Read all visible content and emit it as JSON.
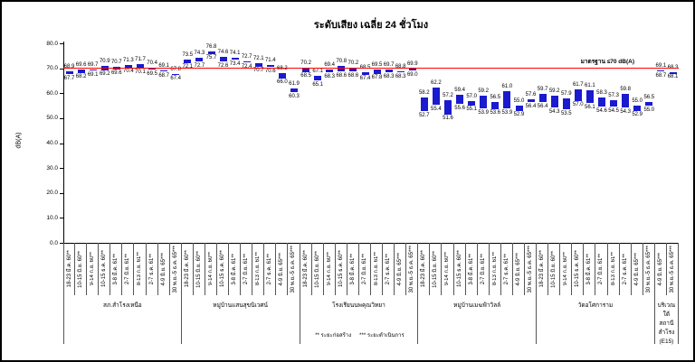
{
  "chart_data": {
    "type": "bar",
    "subtype": "floating-range (min-max) bars",
    "title": "ระดับเสียง เฉลี่ย 24 ชั่วโมง",
    "ylabel": "dB(A)",
    "ylim": [
      0,
      80
    ],
    "ytick_step": 10,
    "grid": false,
    "bar_color": "#1A1ACF",
    "standard_line": {
      "value": 70,
      "label": "มาตรฐาน ≤70 dB(A)",
      "color": "#FF0000"
    },
    "periods": [
      "18-23 มี.ค. 60**",
      "10-15 มิ.ย. 60**",
      "9-14 ก.ย. 60**",
      "10-15 ธ.ค. 60**",
      "3-8 มี.ค. 61**",
      "2-7 มิ.ย. 61**",
      "8-13 ก.ย. 61**",
      "2-7 ธ.ค. 61**",
      "4-9 มิ.ย. 65***",
      "30 พ.ย.-5 ธ.ค. 65***"
    ],
    "groups": [
      {
        "name": "สภ.สำโรงเหนือ",
        "period_indices": [
          0,
          1,
          2,
          3,
          4,
          5,
          6,
          7,
          8,
          9
        ],
        "max": [
          68.9,
          69.6,
          69.7,
          70.9,
          70.7,
          71.3,
          71.7,
          70.4,
          69.1,
          67.8
        ],
        "min": [
          67.7,
          68.2,
          69.1,
          69.2,
          69.6,
          70.4,
          70.1,
          69.5,
          68.7,
          67.4
        ]
      },
      {
        "name": "หมู่บ้านแสนสุขนิเวศน์",
        "period_indices": [
          0,
          1,
          2,
          3,
          4,
          5,
          6,
          7,
          8,
          9
        ],
        "max": [
          73.5,
          74.3,
          76.8,
          74.6,
          74.1,
          72.7,
          72.1,
          71.4,
          68.2,
          61.9
        ],
        "min": [
          72.1,
          72.7,
          75.7,
          72.6,
          73.4,
          72.4,
          70.7,
          70.6,
          66.0,
          60.3
        ]
      },
      {
        "name": "โรงเรียนนพคุณวิทยา",
        "period_indices": [
          0,
          1,
          2,
          3,
          4,
          5,
          6,
          7,
          8,
          9
        ],
        "max": [
          70.2,
          67.1,
          69.4,
          70.8,
          70.2,
          68.5,
          69.5,
          69.7,
          68.8,
          69.9
        ],
        "min": [
          68.5,
          65.1,
          68.3,
          68.6,
          68.6,
          67.4,
          67.8,
          68.3,
          68.3,
          69.0
        ]
      },
      {
        "name": "หมู่บ้านเมฆฟ้าวิลล์",
        "period_indices": [
          0,
          1,
          2,
          3,
          4,
          5,
          6,
          7,
          8,
          9
        ],
        "max": [
          58.2,
          62.2,
          57.2,
          59.4,
          57.0,
          59.2,
          56.5,
          61.0,
          55.0,
          57.6
        ],
        "min": [
          52.7,
          55.4,
          51.6,
          55.6,
          55.1,
          53.9,
          53.6,
          53.9,
          52.9,
          56.4
        ]
      },
      {
        "name": "วัดอโศการาม",
        "period_indices": [
          0,
          1,
          2,
          3,
          4,
          5,
          6,
          7,
          8,
          9
        ],
        "max": [
          59.7,
          59.2,
          57.9,
          61.7,
          61.1,
          58.3,
          57.3,
          59.8,
          55.0,
          56.5
        ],
        "min": [
          56.4,
          54.3,
          53.5,
          57.0,
          56.1,
          54.6,
          54.5,
          54.3,
          52.9,
          55.0
        ]
      },
      {
        "name": "บริเวณใต้สถานีสำโรง (E15)",
        "name_lines": [
          "บริเวณใต้",
          "สถานี",
          "สำโรง",
          "(E15)"
        ],
        "period_indices": [
          8,
          9
        ],
        "max": [
          69.1,
          68.3
        ],
        "min": [
          68.7,
          68.1
        ]
      }
    ],
    "footnote": {
      "construction": "** ระยะก่อสร้าง",
      "operation": "*** ระยะดำเนินการ"
    }
  }
}
